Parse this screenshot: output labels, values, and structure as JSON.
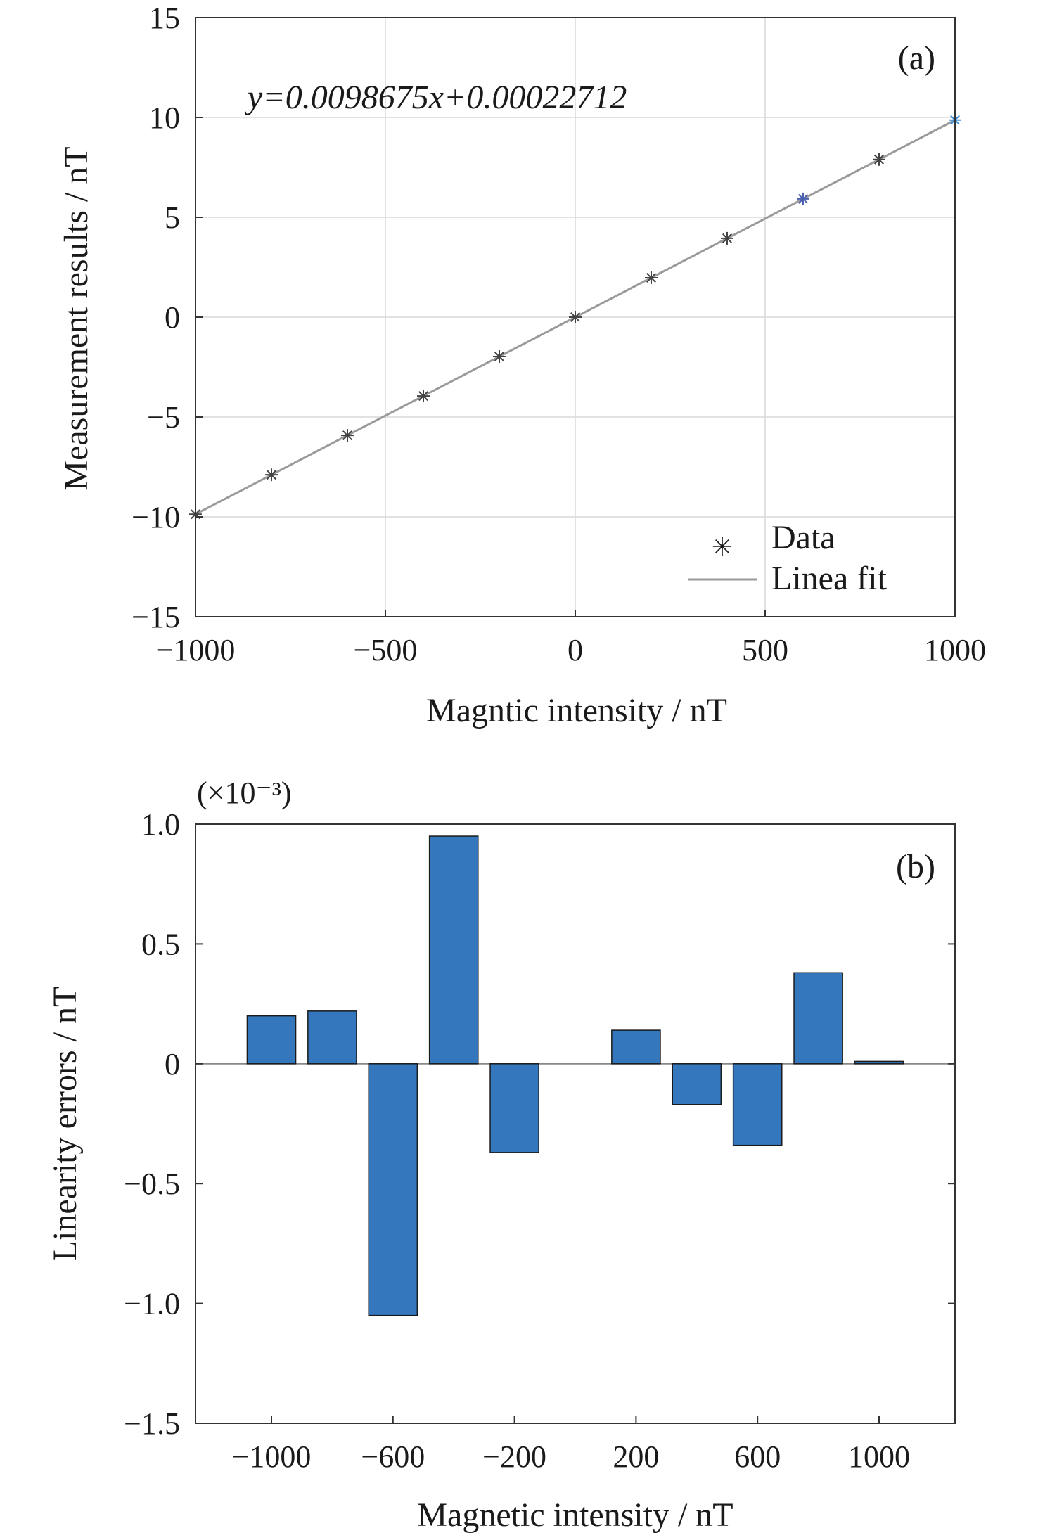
{
  "chart_data": [
    {
      "type": "scatter",
      "panel_label": "(a)",
      "xlabel": "Magntic intensity / nT",
      "ylabel": "Measurement results / nT",
      "xlim": [
        -1000,
        1000
      ],
      "ylim": [
        -15,
        15
      ],
      "xticks": [
        "−1000",
        "−500",
        "0",
        "500",
        "1000"
      ],
      "yticks": [
        "15",
        "10",
        "5",
        "0",
        "−5",
        "−10",
        "−15"
      ],
      "grid": true,
      "equation": "y=0.0098675x+0.00022712",
      "fit": {
        "slope": 0.0098675,
        "intercept": 0.00022712
      },
      "legend_position": "bottom-right",
      "series": [
        {
          "name": "Data",
          "x": [
            -1000,
            -800,
            -600,
            -400,
            -200,
            0,
            200,
            400,
            600,
            800,
            1000
          ],
          "y": [
            -9.8673,
            -7.8938,
            -5.9204,
            -3.9468,
            -1.9733,
            0.0002,
            1.9737,
            3.9472,
            5.9207,
            7.8944,
            9.8677
          ]
        },
        {
          "name": "Linea fit"
        }
      ]
    },
    {
      "type": "bar",
      "panel_label": "(b)",
      "xlabel": "Magnetic intensity / nT",
      "ylabel": "Linearity errors / nT",
      "scale_label": "(×10⁻³)",
      "ylim": [
        -1.5,
        1.0
      ],
      "yticks": [
        "1.0",
        "0.5",
        "0",
        "−0.5",
        "−1.0",
        "−1.5"
      ],
      "xticks": [
        "−1000",
        "−600",
        "−200",
        "200",
        "600",
        "1000"
      ],
      "categories": [
        -1000,
        -800,
        -600,
        -400,
        -200,
        0,
        200,
        400,
        600,
        800,
        1000
      ],
      "values": [
        0.2,
        0.22,
        -1.05,
        0.95,
        -0.37,
        0.0,
        0.14,
        -0.17,
        -0.34,
        0.38,
        0.01
      ],
      "bar_color": "#3477bd"
    }
  ]
}
